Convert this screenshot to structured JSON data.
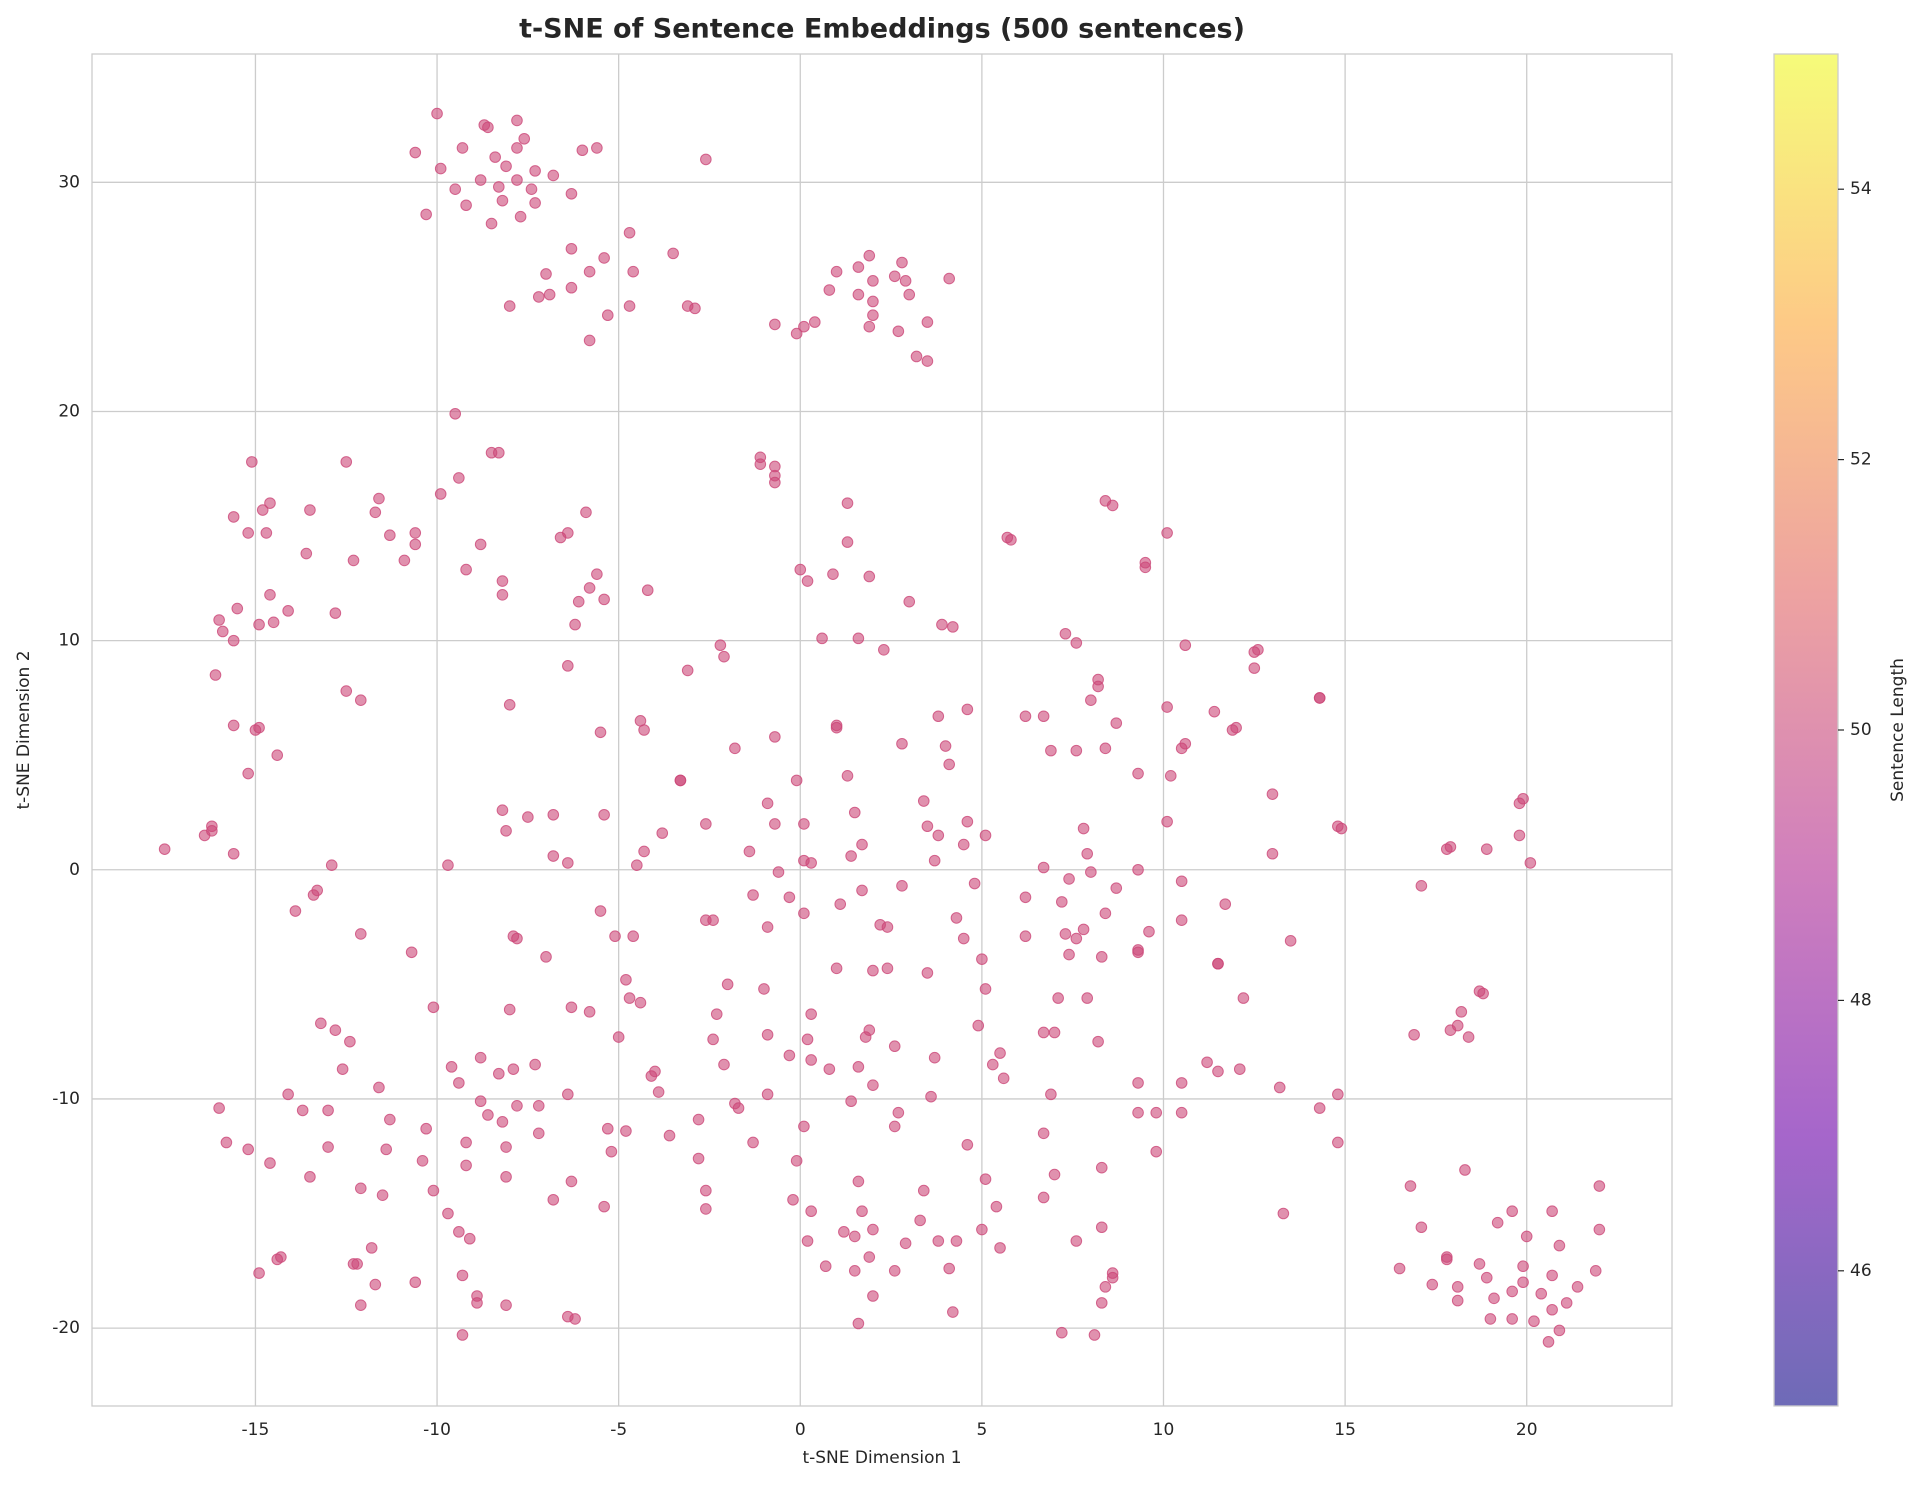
{
  "chart_data": {
    "type": "scatter",
    "title": "t-SNE of Sentence Embeddings (500 sentences)",
    "x_label": "t-SNE Dimension 1",
    "y_label": "t-SNE Dimension 2",
    "color": "#cc4778",
    "grid": true,
    "xlim": [
      -19.5,
      24.0
    ],
    "ylim": [
      -23.4,
      35.6
    ],
    "xticks": [
      -15,
      -10,
      -5,
      0,
      5,
      10,
      15,
      20
    ],
    "yticks": [
      -20,
      -10,
      0,
      10,
      20,
      30
    ],
    "colorbar": {
      "label": "Sentence Length",
      "colormap": "plasma",
      "lim": [
        45,
        55
      ],
      "ticks": [
        46,
        48,
        50,
        52,
        54
      ]
    },
    "x": [
      -10.0,
      -8.7,
      -8.6,
      -7.8,
      -10.6,
      -9.3,
      -8.4,
      -7.6,
      -7.8,
      -6.0,
      -5.6,
      -9.9,
      -8.1,
      -7.3,
      -6.8,
      -8.8,
      -7.8,
      -9.5,
      -8.3,
      -7.4,
      -6.3,
      -9.2,
      -8.2,
      -7.3,
      -10.3,
      -8.5,
      -7.7,
      -2.6,
      -4.7,
      -6.3,
      -5.4,
      -3.5,
      -7.0,
      -5.8,
      -4.6,
      -6.3,
      -6.9,
      -7.2,
      -8.0,
      -4.7,
      -3.1,
      -2.9,
      -5.3,
      -5.8,
      1.9,
      2.8,
      1.0,
      1.6,
      2.6,
      2.9,
      4.1,
      2.0,
      0.8,
      1.6,
      3.0,
      2.0,
      2.0,
      0.4,
      0.1,
      -0.7,
      1.9,
      2.7,
      -0.1,
      3.5,
      3.2,
      3.5,
      -9.5,
      -8.5,
      -8.3,
      -15.1,
      -12.5,
      -1.1,
      -1.1,
      -0.7,
      -0.7,
      -0.7,
      -9.9,
      -9.4,
      -14.6,
      -11.6,
      -14.8,
      -13.5,
      -11.7,
      -15.6,
      -5.9,
      -15.2,
      -14.7,
      -11.3,
      -10.6,
      -6.4,
      -6.6,
      -10.6,
      -8.8,
      -13.6,
      -12.3,
      -10.9,
      -9.2,
      -5.6,
      -8.2,
      -5.8,
      -4.2,
      -8.2,
      -14.6,
      -5.4,
      -6.1,
      -15.5,
      -14.1,
      -12.8,
      -16.0,
      -14.9,
      -14.5,
      -6.2,
      -15.9,
      -15.6,
      -16.1,
      -6.4,
      -12.5,
      -12.1,
      -8.0,
      -15.6,
      -15.0,
      -14.9,
      -5.5,
      -4.4,
      -4.3,
      -14.4,
      -15.2,
      1.3,
      8.4,
      8.6,
      5.7,
      5.8,
      10.1,
      1.3,
      9.5,
      9.5,
      0.0,
      0.9,
      1.9,
      0.2,
      3.0,
      3.9,
      4.2,
      7.3,
      7.6,
      0.6,
      1.6,
      -2.2,
      -2.1,
      2.3,
      -3.1,
      10.6,
      12.6,
      12.5,
      12.5,
      8.2,
      8.2,
      8.0,
      14.3,
      14.3,
      4.6,
      10.1,
      11.4,
      6.2,
      6.7,
      3.8,
      8.7,
      1.0,
      1.0,
      12.0,
      11.9,
      -1.8,
      -0.7,
      2.8,
      4.0,
      6.9,
      7.6,
      8.4,
      10.6,
      10.5,
      4.1,
      9.3,
      10.2,
      1.3,
      -3.3,
      -3.3,
      -0.1,
      3.4,
      13.0,
      19.9,
      19.8,
      -0.9,
      -8.2,
      -6.8,
      -5.4,
      -7.5,
      1.5,
      4.6,
      10.1,
      0.1,
      -0.7,
      -2.6,
      -16.2,
      14.8,
      14.9,
      3.5,
      7.8,
      -8.1,
      -16.2,
      -3.8,
      3.8,
      5.1,
      19.8,
      -16.4,
      1.7,
      4.5,
      17.9,
      17.8,
      18.9,
      -17.5,
      -1.4,
      -4.3,
      -15.6,
      7.9,
      13.0,
      -6.8,
      1.4,
      3.7,
      0.1,
      0.3,
      -12.9,
      -9.7,
      -6.4,
      -4.5,
      20.1,
      6.7,
      9.3,
      -0.6,
      8.0,
      7.4,
      10.5,
      4.8,
      17.1,
      2.8,
      8.7,
      -13.3,
      -13.4,
      1.7,
      -1.3,
      -0.3,
      6.2,
      7.2,
      1.1,
      11.7,
      -13.9,
      -5.5,
      0.1,
      8.4,
      4.3,
      -2.6,
      -2.4,
      10.5,
      2.2,
      2.4,
      -0.9,
      7.8,
      9.6,
      7.3,
      6.2,
      -12.1,
      -7.9,
      -7.8,
      -5.1,
      -4.6,
      4.5,
      7.6,
      13.5,
      9.3,
      9.3,
      -10.7,
      -7.0,
      7.4,
      8.3,
      5.0,
      11.5,
      11.5,
      1.0,
      2.4,
      2.0,
      3.5,
      -4.8,
      -2.0,
      5.1,
      -1.0,
      18.7,
      18.8,
      -4.7,
      7.1,
      7.9,
      12.2,
      -4.4,
      -10.1,
      -8.0,
      -6.3,
      -5.8,
      -2.3,
      0.3,
      18.2,
      -13.2,
      -12.8,
      4.9,
      18.1,
      17.9,
      6.7,
      7.0,
      16.9,
      18.4,
      -0.9,
      -2.4,
      -5.0,
      0.2,
      1.9,
      1.8,
      -12.4,
      8.2,
      2.6,
      -0.3,
      5.5,
      -8.8,
      -12.6,
      -9.6,
      -7.3,
      -7.9,
      -8.3,
      -4.0,
      -4.1,
      -2.1,
      0.3,
      0.8,
      1.6,
      5.3,
      3.7,
      11.2,
      12.1,
      11.5,
      5.6,
      -9.4,
      -11.6,
      9.3,
      10.5,
      13.2,
      2.0,
      -14.1,
      -6.4,
      -3.9,
      -0.9,
      3.6,
      6.9,
      14.8,
      -8.8,
      -1.8,
      -1.7,
      -16.0,
      -13.7,
      -13.0,
      -8.6,
      -7.8,
      -7.2,
      1.4,
      2.7,
      9.3,
      9.8,
      10.5,
      14.3,
      -11.3,
      -8.2,
      -2.8,
      -5.3,
      -4.8,
      -10.3,
      -7.2,
      0.1,
      2.6,
      6.7,
      -3.6,
      -9.2,
      -1.3,
      -15.8,
      -15.2,
      -13.0,
      -11.4,
      -8.1,
      -5.2,
      4.6,
      9.8,
      14.8,
      -14.6,
      -10.4,
      -2.8,
      -0.1,
      -9.2,
      8.3,
      18.3,
      -13.5,
      -8.1,
      -6.3,
      1.6,
      5.1,
      7.0,
      16.8,
      22.0,
      -12.1,
      -10.1,
      -2.6,
      3.4,
      -11.5,
      -6.8,
      -0.2,
      6.7,
      -2.6,
      -5.4,
      0.3,
      1.7,
      5.4,
      19.6,
      20.7,
      -9.7,
      13.3,
      3.3,
      17.1,
      19.2,
      -9.4,
      8.3,
      2.0,
      1.2,
      5.0,
      22.0,
      -9.1,
      0.2,
      1.5,
      2.9,
      3.8,
      4.3,
      7.6,
      5.5,
      20.9,
      20.0,
      -11.8,
      -14.3,
      -14.4,
      1.9,
      17.8,
      17.8,
      18.7,
      19.9,
      16.5,
      0.7,
      -12.3,
      -12.2,
      -14.9,
      -9.3,
      1.5,
      2.6,
      4.1,
      8.6,
      8.6,
      20.7,
      21.9,
      -11.7,
      -10.6,
      8.4,
      17.4,
      18.1,
      19.9,
      18.9,
      21.4,
      -8.9,
      2.0,
      19.6,
      20.4,
      -8.9,
      -8.1,
      -12.1,
      8.3,
      18.1,
      19.1,
      21.1,
      20.7,
      -6.4,
      -6.2,
      4.2,
      1.6,
      19.0,
      19.6,
      20.2,
      -9.3,
      7.2,
      8.1,
      20.9,
      20.6
    ],
    "y": [
      33.0,
      32.5,
      32.4,
      32.7,
      31.3,
      31.5,
      31.1,
      31.9,
      31.5,
      31.4,
      31.5,
      30.6,
      30.7,
      30.5,
      30.3,
      30.1,
      30.1,
      29.7,
      29.8,
      29.7,
      29.5,
      29.0,
      29.2,
      29.1,
      28.6,
      28.2,
      28.5,
      31.0,
      27.8,
      27.1,
      26.7,
      26.9,
      26.0,
      26.1,
      26.1,
      25.4,
      25.1,
      25.0,
      24.6,
      24.6,
      24.6,
      24.5,
      24.2,
      23.1,
      26.8,
      26.5,
      26.1,
      26.3,
      25.9,
      25.7,
      25.8,
      25.7,
      25.3,
      25.1,
      25.1,
      24.8,
      24.2,
      23.9,
      23.7,
      23.8,
      23.7,
      23.5,
      23.4,
      23.9,
      22.4,
      22.2,
      19.9,
      18.2,
      18.2,
      17.8,
      17.8,
      18.0,
      17.7,
      17.6,
      17.2,
      16.9,
      16.4,
      17.1,
      16.0,
      16.2,
      15.7,
      15.7,
      15.6,
      15.4,
      15.6,
      14.7,
      14.7,
      14.6,
      14.7,
      14.7,
      14.5,
      14.2,
      14.2,
      13.8,
      13.5,
      13.5,
      13.1,
      12.9,
      12.6,
      12.3,
      12.2,
      12.0,
      12.0,
      11.8,
      11.7,
      11.4,
      11.3,
      11.2,
      10.9,
      10.7,
      10.8,
      10.7,
      10.4,
      10.0,
      8.5,
      8.9,
      7.8,
      7.4,
      7.2,
      6.3,
      6.1,
      6.2,
      6.0,
      6.5,
      6.1,
      5.0,
      4.2,
      16.0,
      16.1,
      15.9,
      14.5,
      14.4,
      14.7,
      14.3,
      13.4,
      13.2,
      13.1,
      12.9,
      12.8,
      12.6,
      11.7,
      10.7,
      10.6,
      10.3,
      9.9,
      10.1,
      10.1,
      9.8,
      9.3,
      9.6,
      8.7,
      9.8,
      9.6,
      9.5,
      8.8,
      8.3,
      8.0,
      7.4,
      7.5,
      7.5,
      7.0,
      7.1,
      6.9,
      6.7,
      6.7,
      6.7,
      6.4,
      6.3,
      6.2,
      6.2,
      6.1,
      5.3,
      5.8,
      5.5,
      5.4,
      5.2,
      5.2,
      5.3,
      5.5,
      5.3,
      4.6,
      4.2,
      4.1,
      4.1,
      3.9,
      3.9,
      3.9,
      3.0,
      3.3,
      3.1,
      2.9,
      2.9,
      2.6,
      2.4,
      2.4,
      2.3,
      2.5,
      2.1,
      2.1,
      2.0,
      2.0,
      2.0,
      1.9,
      1.9,
      1.8,
      1.9,
      1.8,
      1.7,
      1.7,
      1.6,
      1.5,
      1.5,
      1.5,
      1.5,
      1.1,
      1.1,
      1.0,
      0.9,
      0.9,
      0.9,
      0.8,
      0.8,
      0.7,
      0.7,
      0.7,
      0.6,
      0.6,
      0.4,
      0.4,
      0.3,
      0.2,
      0.2,
      0.3,
      0.2,
      0.3,
      0.1,
      0.0,
      -0.1,
      -0.1,
      -0.4,
      -0.5,
      -0.6,
      -0.7,
      -0.7,
      -0.8,
      -0.9,
      -1.1,
      -0.9,
      -1.1,
      -1.2,
      -1.2,
      -1.4,
      -1.5,
      -1.5,
      -1.8,
      -1.8,
      -1.9,
      -1.9,
      -2.1,
      -2.2,
      -2.2,
      -2.2,
      -2.4,
      -2.5,
      -2.5,
      -2.6,
      -2.7,
      -2.8,
      -2.9,
      -2.8,
      -2.9,
      -3.0,
      -2.9,
      -2.9,
      -3.0,
      -3.0,
      -3.1,
      -3.5,
      -3.6,
      -3.6,
      -3.8,
      -3.7,
      -3.8,
      -3.9,
      -4.1,
      -4.1,
      -4.3,
      -4.3,
      -4.4,
      -4.5,
      -4.8,
      -5.0,
      -5.2,
      -5.2,
      -5.3,
      -5.4,
      -5.6,
      -5.6,
      -5.6,
      -5.6,
      -5.8,
      -6.0,
      -6.1,
      -6.0,
      -6.2,
      -6.3,
      -6.3,
      -6.2,
      -6.7,
      -7.0,
      -6.8,
      -6.8,
      -7.0,
      -7.1,
      -7.1,
      -7.2,
      -7.3,
      -7.2,
      -7.4,
      -7.3,
      -7.4,
      -7.0,
      -7.3,
      -7.5,
      -7.5,
      -7.7,
      -8.1,
      -8.0,
      -8.2,
      -8.7,
      -8.6,
      -8.5,
      -8.7,
      -8.9,
      -8.8,
      -9.0,
      -8.5,
      -8.3,
      -8.7,
      -8.6,
      -8.5,
      -8.2,
      -8.4,
      -8.7,
      -8.8,
      -9.1,
      -9.3,
      -9.5,
      -9.3,
      -9.3,
      -9.5,
      -9.4,
      -9.8,
      -9.8,
      -9.7,
      -9.8,
      -9.9,
      -9.8,
      -9.8,
      -10.1,
      -10.2,
      -10.4,
      -10.4,
      -10.5,
      -10.5,
      -10.7,
      -10.3,
      -10.3,
      -10.1,
      -10.6,
      -10.6,
      -10.6,
      -10.6,
      -10.4,
      -10.9,
      -11.0,
      -10.9,
      -11.3,
      -11.4,
      -11.3,
      -11.5,
      -11.2,
      -11.2,
      -11.5,
      -11.6,
      -11.9,
      -11.9,
      -11.9,
      -12.2,
      -12.1,
      -12.2,
      -12.1,
      -12.3,
      -12.0,
      -12.3,
      -11.9,
      -12.8,
      -12.7,
      -12.6,
      -12.7,
      -12.9,
      -13.0,
      -13.1,
      -13.4,
      -13.4,
      -13.6,
      -13.6,
      -13.5,
      -13.3,
      -13.8,
      -13.8,
      -13.9,
      -14.0,
      -14.0,
      -14.0,
      -14.2,
      -14.4,
      -14.4,
      -14.3,
      -14.8,
      -14.7,
      -14.9,
      -14.9,
      -14.7,
      -14.9,
      -14.9,
      -15.0,
      -15.0,
      -15.3,
      -15.6,
      -15.4,
      -15.8,
      -15.6,
      -15.7,
      -15.8,
      -15.7,
      -15.7,
      -16.1,
      -16.2,
      -16.0,
      -16.3,
      -16.2,
      -16.2,
      -16.2,
      -16.5,
      -16.4,
      -16.0,
      -16.5,
      -16.9,
      -17.0,
      -16.9,
      -16.9,
      -17.0,
      -17.2,
      -17.3,
      -17.4,
      -17.3,
      -17.2,
      -17.2,
      -17.6,
      -17.7,
      -17.5,
      -17.5,
      -17.4,
      -17.6,
      -17.8,
      -17.7,
      -17.5,
      -18.1,
      -18.0,
      -18.2,
      -18.1,
      -18.2,
      -18.0,
      -17.8,
      -18.2,
      -18.6,
      -18.6,
      -18.4,
      -18.5,
      -18.9,
      -19.0,
      -19.0,
      -18.9,
      -18.8,
      -18.7,
      -18.9,
      -19.2,
      -19.5,
      -19.6,
      -19.3,
      -19.8,
      -19.6,
      -19.6,
      -19.7,
      -20.3,
      -20.2,
      -20.3,
      -20.1,
      -20.6
    ]
  }
}
